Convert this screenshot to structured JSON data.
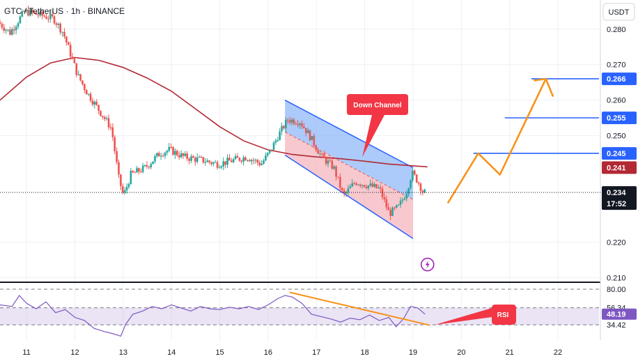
{
  "header": {
    "symbol_title": "GTC / TetherUS · 1h · BINANCE"
  },
  "currency_label": "USDT",
  "colors": {
    "up": "#26a69a",
    "down": "#ef5350",
    "ma": "#b22833",
    "channel_line": "#2962ff",
    "channel_upper_fill": "#90b8f8",
    "channel_lower_fill": "#f4b6bd",
    "projection": "#f7931a",
    "rsi_line": "#7e57c2",
    "rsi_band": "#d1c4e9",
    "rsi_trend": "#f7931a",
    "callout": "#f23645",
    "current_price_tag": "#131722",
    "grid": "#eef0f4"
  },
  "chart_data": {
    "type": "candlestick",
    "title": "GTC / TetherUS · 1h · BINANCE",
    "x_axis": {
      "unit": "day",
      "range": [
        10.45,
        22.85
      ],
      "ticks": [
        {
          "v": 11,
          "label": "11"
        },
        {
          "v": 12,
          "label": "12"
        },
        {
          "v": 13,
          "label": "13"
        },
        {
          "v": 14,
          "label": "14"
        },
        {
          "v": 15,
          "label": "15"
        },
        {
          "v": 16,
          "label": "16"
        },
        {
          "v": 17,
          "label": "17"
        },
        {
          "v": 18,
          "label": "18"
        },
        {
          "v": 19,
          "label": "19"
        },
        {
          "v": 20,
          "label": "20"
        },
        {
          "v": 21,
          "label": "21"
        },
        {
          "v": 22,
          "label": "22"
        }
      ]
    },
    "price_axis": {
      "unit": "USDT",
      "range": [
        0.2087,
        0.2882
      ],
      "ticks": [
        0.28,
        0.27,
        0.26,
        0.25,
        0.22,
        0.21
      ],
      "tick_labels": [
        "0.280",
        "0.270",
        "0.260",
        "0.250",
        "0.220",
        "0.210"
      ],
      "grid": true
    },
    "price_path": [
      [
        10.45,
        0.282
      ],
      [
        10.7,
        0.279
      ],
      [
        11.0,
        0.285
      ],
      [
        11.3,
        0.284
      ],
      [
        11.6,
        0.283
      ],
      [
        11.8,
        0.279
      ],
      [
        11.95,
        0.273
      ],
      [
        12.1,
        0.267
      ],
      [
        12.3,
        0.262
      ],
      [
        12.55,
        0.257
      ],
      [
        12.8,
        0.252
      ],
      [
        12.95,
        0.238
      ],
      [
        13.05,
        0.233
      ],
      [
        13.2,
        0.239
      ],
      [
        13.5,
        0.241
      ],
      [
        13.8,
        0.245
      ],
      [
        14.0,
        0.246
      ],
      [
        14.3,
        0.244
      ],
      [
        14.7,
        0.243
      ],
      [
        15.0,
        0.242
      ],
      [
        15.3,
        0.243
      ],
      [
        15.6,
        0.244
      ],
      [
        15.9,
        0.242
      ],
      [
        16.1,
        0.246
      ],
      [
        16.25,
        0.25
      ],
      [
        16.45,
        0.2545
      ],
      [
        16.7,
        0.254
      ],
      [
        16.9,
        0.25
      ],
      [
        17.15,
        0.244
      ],
      [
        17.4,
        0.241
      ],
      [
        17.6,
        0.233
      ],
      [
        17.85,
        0.237
      ],
      [
        18.1,
        0.236
      ],
      [
        18.35,
        0.235
      ],
      [
        18.55,
        0.228
      ],
      [
        18.75,
        0.23
      ],
      [
        18.9,
        0.234
      ],
      [
        19.02,
        0.2395
      ],
      [
        19.15,
        0.237
      ],
      [
        19.25,
        0.234
      ]
    ],
    "moving_average": [
      [
        10.45,
        0.26
      ],
      [
        11.0,
        0.2665
      ],
      [
        11.5,
        0.2705
      ],
      [
        12.0,
        0.272
      ],
      [
        12.5,
        0.2712
      ],
      [
        13.0,
        0.2692
      ],
      [
        13.5,
        0.2662
      ],
      [
        14.0,
        0.2625
      ],
      [
        14.5,
        0.2575
      ],
      [
        15.0,
        0.2525
      ],
      [
        15.5,
        0.2485
      ],
      [
        16.0,
        0.246
      ],
      [
        16.5,
        0.2447
      ],
      [
        17.0,
        0.244
      ],
      [
        17.5,
        0.2435
      ],
      [
        18.0,
        0.2428
      ],
      [
        18.5,
        0.242
      ],
      [
        19.0,
        0.2415
      ],
      [
        19.3,
        0.2412
      ]
    ],
    "down_channel": {
      "upper": [
        [
          16.35,
          0.26
        ],
        [
          19.0,
          0.241
        ]
      ],
      "middle": [
        [
          16.35,
          0.251
        ],
        [
          19.0,
          0.232
        ]
      ],
      "lower": [
        [
          16.35,
          0.2445
        ],
        [
          19.0,
          0.221
        ]
      ],
      "label": "Down Channel",
      "label_anchor": [
        17.95,
        0.244
      ]
    },
    "projection_path": [
      [
        19.72,
        0.231
      ],
      [
        20.35,
        0.245
      ],
      [
        20.8,
        0.239
      ],
      [
        21.75,
        0.266
      ],
      [
        21.9,
        0.261
      ]
    ],
    "target_levels": [
      {
        "price": 0.266,
        "label": "0.266",
        "x_start": 21.45,
        "color": "#2962ff"
      },
      {
        "price": 0.255,
        "label": "0.255",
        "x_start": 20.9,
        "color": "#2962ff"
      },
      {
        "price": 0.245,
        "label": "0.245",
        "x_start": 20.25,
        "color": "#2962ff"
      }
    ],
    "ma_value_tag": {
      "price": 0.241,
      "label": "0.241",
      "color": "#b22833"
    },
    "current_price": {
      "price": 0.234,
      "label": "0.234",
      "countdown": "17:52"
    },
    "alert_marker": {
      "x": 19.3,
      "price": 0.2137
    },
    "rsi": {
      "range": [
        15,
        88
      ],
      "levels": [
        {
          "value": 80.0,
          "label": "80.00"
        },
        {
          "value": 56.34,
          "label": "56.34"
        },
        {
          "value": 34.42,
          "label": "34.42"
        }
      ],
      "current": {
        "value": 48.19,
        "label": "48.19"
      },
      "series": [
        [
          10.45,
          60
        ],
        [
          10.7,
          58
        ],
        [
          10.85,
          72
        ],
        [
          11.0,
          62
        ],
        [
          11.2,
          55
        ],
        [
          11.4,
          64
        ],
        [
          11.6,
          50
        ],
        [
          11.8,
          54
        ],
        [
          12.0,
          44
        ],
        [
          12.2,
          40
        ],
        [
          12.4,
          30
        ],
        [
          12.6,
          26
        ],
        [
          12.8,
          23
        ],
        [
          12.95,
          20
        ],
        [
          13.05,
          35
        ],
        [
          13.2,
          48
        ],
        [
          13.4,
          52
        ],
        [
          13.6,
          58
        ],
        [
          13.8,
          55
        ],
        [
          14.0,
          60
        ],
        [
          14.2,
          56
        ],
        [
          14.4,
          52
        ],
        [
          14.6,
          58
        ],
        [
          14.8,
          55
        ],
        [
          15.0,
          54
        ],
        [
          15.2,
          57
        ],
        [
          15.4,
          55
        ],
        [
          15.6,
          58
        ],
        [
          15.8,
          54
        ],
        [
          16.0,
          60
        ],
        [
          16.2,
          68
        ],
        [
          16.35,
          72
        ],
        [
          16.5,
          70
        ],
        [
          16.7,
          62
        ],
        [
          16.9,
          48
        ],
        [
          17.1,
          45
        ],
        [
          17.3,
          42
        ],
        [
          17.5,
          38
        ],
        [
          17.7,
          43
        ],
        [
          17.9,
          41
        ],
        [
          18.1,
          47
        ],
        [
          18.3,
          40
        ],
        [
          18.5,
          44
        ],
        [
          18.65,
          32
        ],
        [
          18.8,
          42
        ],
        [
          18.95,
          58
        ],
        [
          19.1,
          56
        ],
        [
          19.25,
          48
        ]
      ],
      "trendline": [
        [
          16.45,
          76
        ],
        [
          19.35,
          34
        ]
      ],
      "label": "RSI",
      "label_anchor": [
        19.45,
        34.5
      ]
    }
  }
}
